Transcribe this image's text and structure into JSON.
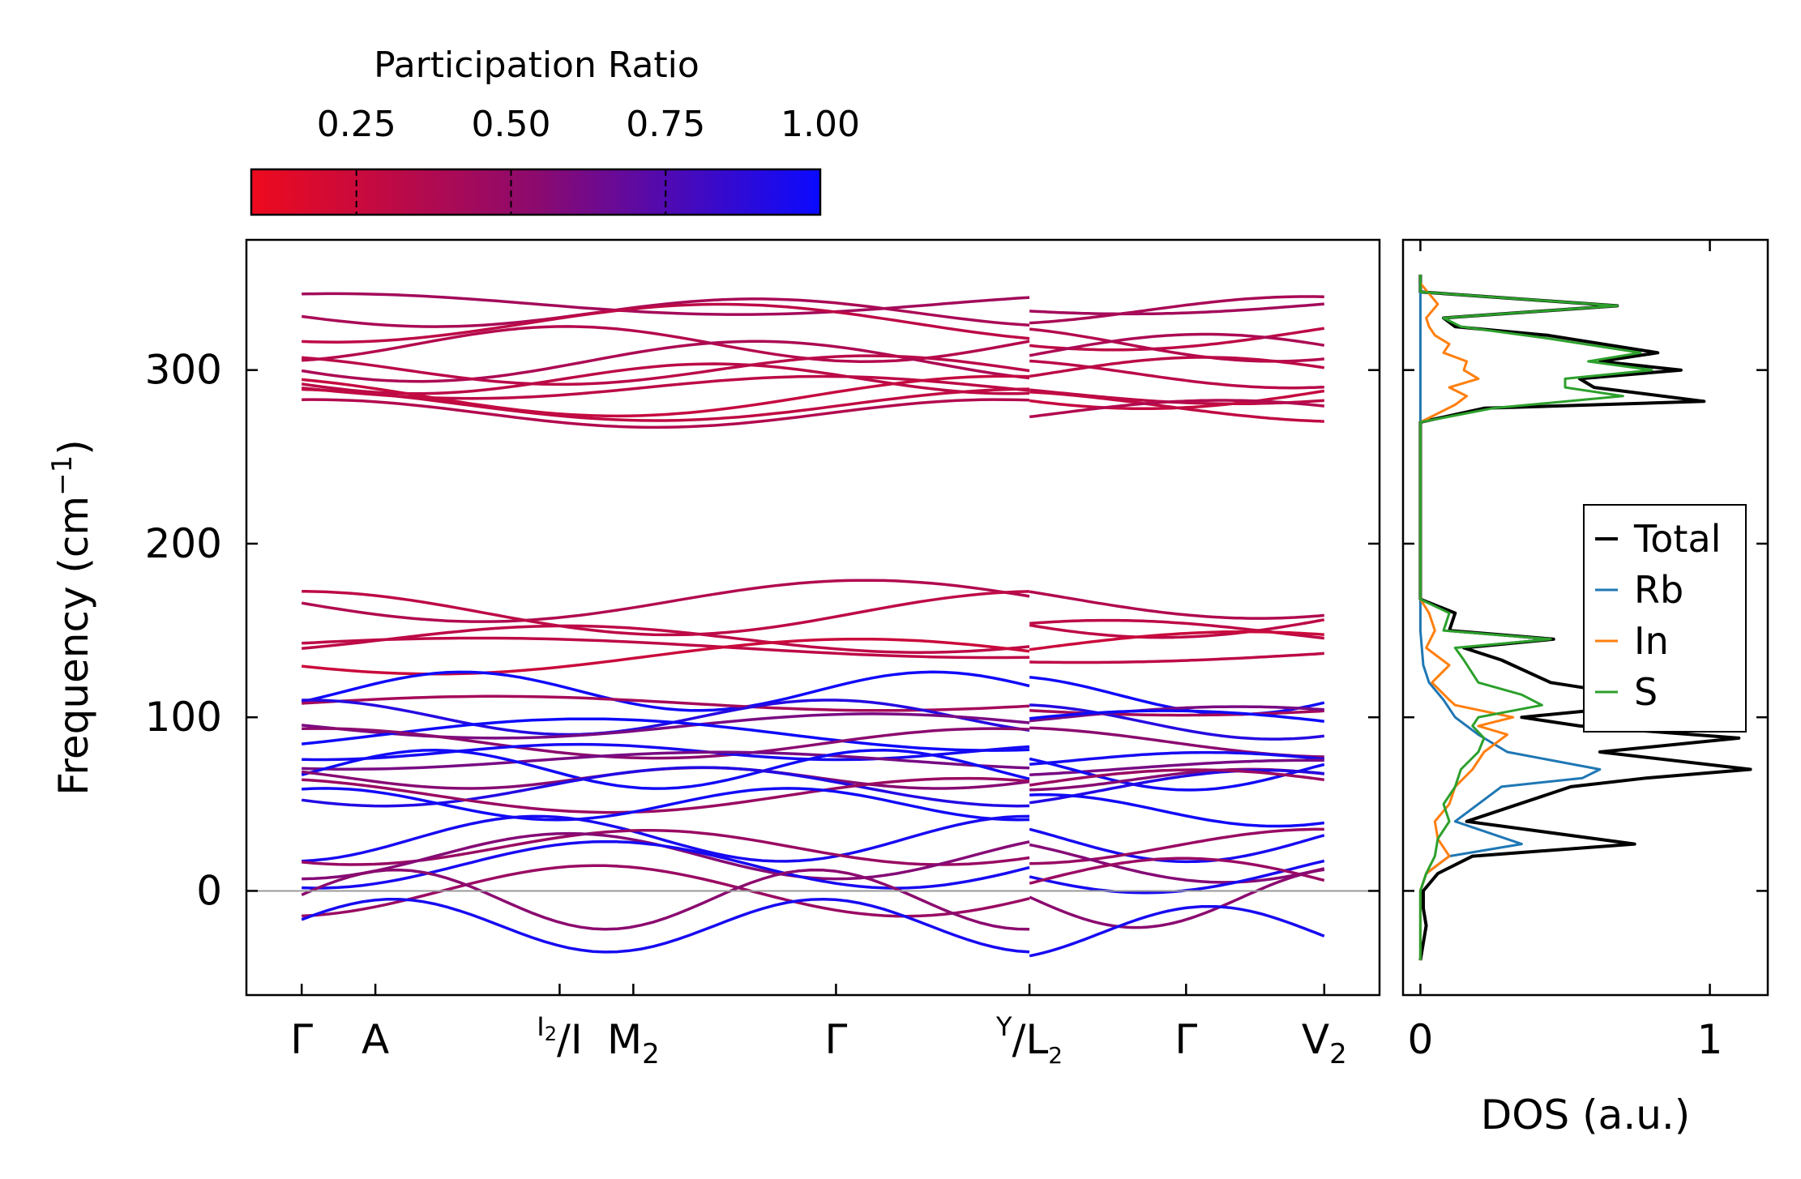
{
  "chart_data": {
    "type": "phonon-band-structure-with-dos",
    "bands": {
      "ylabel": "Frequency (cm",
      "ylabel_sup": "−1",
      "ylabel_close": ")",
      "ylim": [
        -60,
        375
      ],
      "yticks": [
        0,
        100,
        200,
        300
      ],
      "kpath_ticks": [
        {
          "main": "Γ",
          "pos": 0.0
        },
        {
          "main": "A",
          "pos": 0.8
        },
        {
          "sup": "I",
          "sub_sup": "2",
          "main": "/I",
          "pos": 2.8,
          "combined": true
        },
        {
          "main": "M",
          "main_sub": "2",
          "pos": 3.6
        },
        {
          "main": "Γ",
          "pos": 5.8
        },
        {
          "sup": "Y",
          "main": "/L",
          "main_sub": "2",
          "pos": 7.9,
          "combined": true
        },
        {
          "main": "Γ",
          "pos": 9.6
        },
        {
          "main": "V",
          "main_sub": "2",
          "pos": 11.1
        }
      ],
      "segment_break": 7.9,
      "zero_line": 0,
      "optical_high_band_values_approx": [
        338,
        333,
        327,
        315,
        305,
        300,
        295,
        290,
        285,
        280,
        275
      ],
      "optical_mid_band_values_approx": [
        167,
        160,
        145,
        140,
        135
      ],
      "low_band_values_approx": [
        115,
        108,
        100,
        95,
        90,
        85,
        80,
        75,
        70,
        65,
        60,
        55,
        50
      ],
      "acoustic_band_values_approx": [
        30,
        25,
        20,
        15,
        0,
        -5,
        -20
      ]
    },
    "colorbar": {
      "title": "Participation Ratio",
      "ticks": [
        "0.25",
        "0.50",
        "0.75",
        "1.00"
      ],
      "tick_values": [
        0.25,
        0.5,
        0.75,
        1.0
      ],
      "range": [
        0.08,
        1.0
      ],
      "color_low": "#ee0a1e",
      "color_mid": "#8c0a6e",
      "color_high": "#0a0aff"
    },
    "dos": {
      "xlabel": "DOS (a.u.)",
      "xticks": [
        "0",
        "1"
      ],
      "xtick_values": [
        0,
        1
      ],
      "xlim": [
        -0.06,
        1.2
      ],
      "legend_position": "center-right",
      "series": [
        {
          "name": "Total",
          "color": "#000000",
          "y": [
            -40,
            -30,
            -20,
            -10,
            0,
            10,
            20,
            27,
            40,
            60,
            65,
            70,
            80,
            88,
            95,
            100,
            107,
            113,
            120,
            133,
            140,
            145,
            150,
            160,
            168,
            270,
            278,
            282,
            290,
            295,
            300,
            305,
            310,
            320,
            325,
            330,
            337,
            345,
            355
          ],
          "dos": [
            0,
            0.01,
            0.02,
            0.01,
            0.01,
            0.06,
            0.18,
            0.74,
            0.16,
            0.52,
            0.78,
            1.14,
            0.62,
            1.1,
            0.55,
            0.35,
            0.78,
            0.72,
            0.45,
            0.28,
            0.15,
            0.46,
            0.1,
            0.12,
            0,
            0,
            0.22,
            0.98,
            0.6,
            0.55,
            0.9,
            0.62,
            0.82,
            0.44,
            0.12,
            0.08,
            0.68,
            0,
            0
          ]
        },
        {
          "name": "Rb",
          "color": "#1f77b4",
          "y": [
            -40,
            0,
            10,
            20,
            27,
            40,
            60,
            65,
            70,
            80,
            90,
            100,
            110,
            120,
            130,
            150,
            168,
            270,
            350
          ],
          "dos": [
            0,
            0,
            0.02,
            0.1,
            0.35,
            0.12,
            0.28,
            0.56,
            0.62,
            0.3,
            0.2,
            0.12,
            0.08,
            0.03,
            0.01,
            0,
            0,
            0,
            0
          ]
        },
        {
          "name": "In",
          "color": "#ff7f0e",
          "y": [
            -40,
            0,
            10,
            20,
            30,
            40,
            50,
            60,
            70,
            80,
            90,
            95,
            100,
            107,
            110,
            120,
            130,
            140,
            150,
            160,
            168,
            270,
            280,
            285,
            290,
            295,
            300,
            305,
            310,
            315,
            320,
            325,
            330,
            338,
            350
          ],
          "dos": [
            0,
            0,
            0.02,
            0.1,
            0.06,
            0.05,
            0.1,
            0.12,
            0.18,
            0.22,
            0.3,
            0.2,
            0.32,
            0.12,
            0.1,
            0.04,
            0.1,
            0.02,
            0.05,
            0.03,
            0,
            0,
            0.12,
            0.16,
            0.1,
            0.2,
            0.15,
            0.16,
            0.08,
            0.1,
            0.05,
            0.03,
            0.02,
            0.06,
            0
          ]
        },
        {
          "name": "S",
          "color": "#2ca02c",
          "y": [
            -40,
            0,
            10,
            20,
            30,
            40,
            50,
            60,
            70,
            80,
            88,
            95,
            100,
            107,
            113,
            120,
            133,
            140,
            145,
            150,
            160,
            168,
            270,
            278,
            285,
            290,
            295,
            300,
            305,
            310,
            318,
            325,
            330,
            337,
            345,
            355
          ],
          "dos": [
            0,
            0,
            0.02,
            0.05,
            0.06,
            0.1,
            0.08,
            0.12,
            0.14,
            0.2,
            0.22,
            0.18,
            0.2,
            0.42,
            0.35,
            0.2,
            0.15,
            0.12,
            0.45,
            0.08,
            0.1,
            0,
            0,
            0.25,
            0.7,
            0.5,
            0.5,
            0.8,
            0.58,
            0.76,
            0.45,
            0.14,
            0.08,
            0.68,
            0,
            0
          ]
        }
      ]
    }
  }
}
